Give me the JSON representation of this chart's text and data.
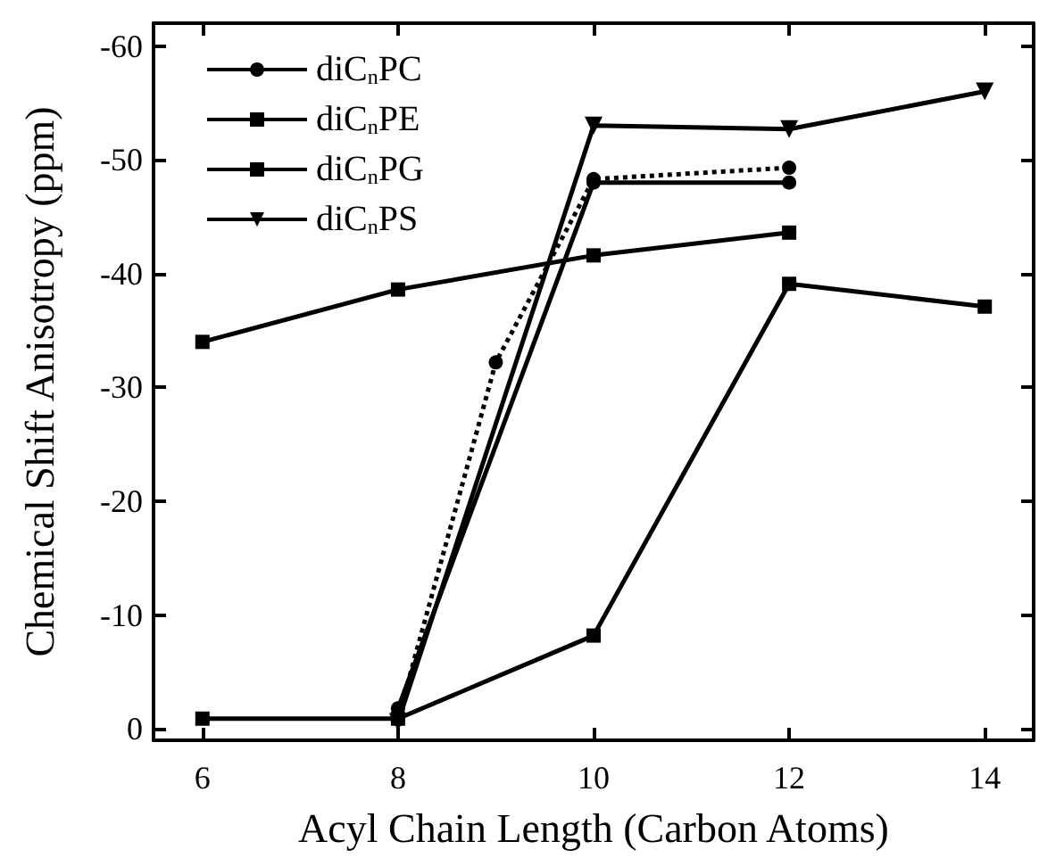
{
  "chart_data": {
    "type": "line",
    "xlabel": "Acyl Chain Length (Carbon Atoms)",
    "ylabel": "Chemical Shift Anisotropy (ppm)",
    "xlim": [
      5.5,
      14.5
    ],
    "xticks": [
      6,
      8,
      10,
      12,
      14
    ],
    "ylim": [
      1,
      -62
    ],
    "yticks": [
      0,
      -10,
      -20,
      -30,
      -40,
      -50,
      -60
    ],
    "grid": false,
    "legend": "top left",
    "series": [
      {
        "name": "diC$_{n}$PC",
        "color": "#000000",
        "marker": "circle",
        "line_style": "solid",
        "x": [
          8,
          10,
          12
        ],
        "values": [
          -1.8,
          -48.0,
          -48.0
        ]
      },
      {
        "name": "diC$_{n}$PE",
        "color": "#000000",
        "marker": "square",
        "line_style": "solid",
        "x": [
          6,
          8,
          10,
          12
        ],
        "values": [
          -34.0,
          -38.6,
          -41.6,
          -43.6
        ]
      },
      {
        "name": "diC$_{n}$PG",
        "color": "#000000",
        "marker": "square",
        "line_style": "solid",
        "x": [
          6,
          8,
          10,
          12,
          14
        ],
        "values": [
          -0.9,
          -0.9,
          -8.2,
          -39.1,
          -37.1
        ]
      },
      {
        "name": "diC$_{n}$PS",
        "color": "#000000",
        "marker": "triangle",
        "line_style": "solid",
        "x": [
          8,
          10,
          12,
          14
        ],
        "values": [
          -0.6,
          -53.0,
          -52.7,
          -56.0
        ]
      },
      {
        "color": "#000000",
        "marker": "circle",
        "line_style": "dotted",
        "x": [
          8,
          9,
          10,
          12
        ],
        "values": [
          -0.9,
          -32.2,
          -48.3,
          -49.3
        ]
      }
    ]
  }
}
